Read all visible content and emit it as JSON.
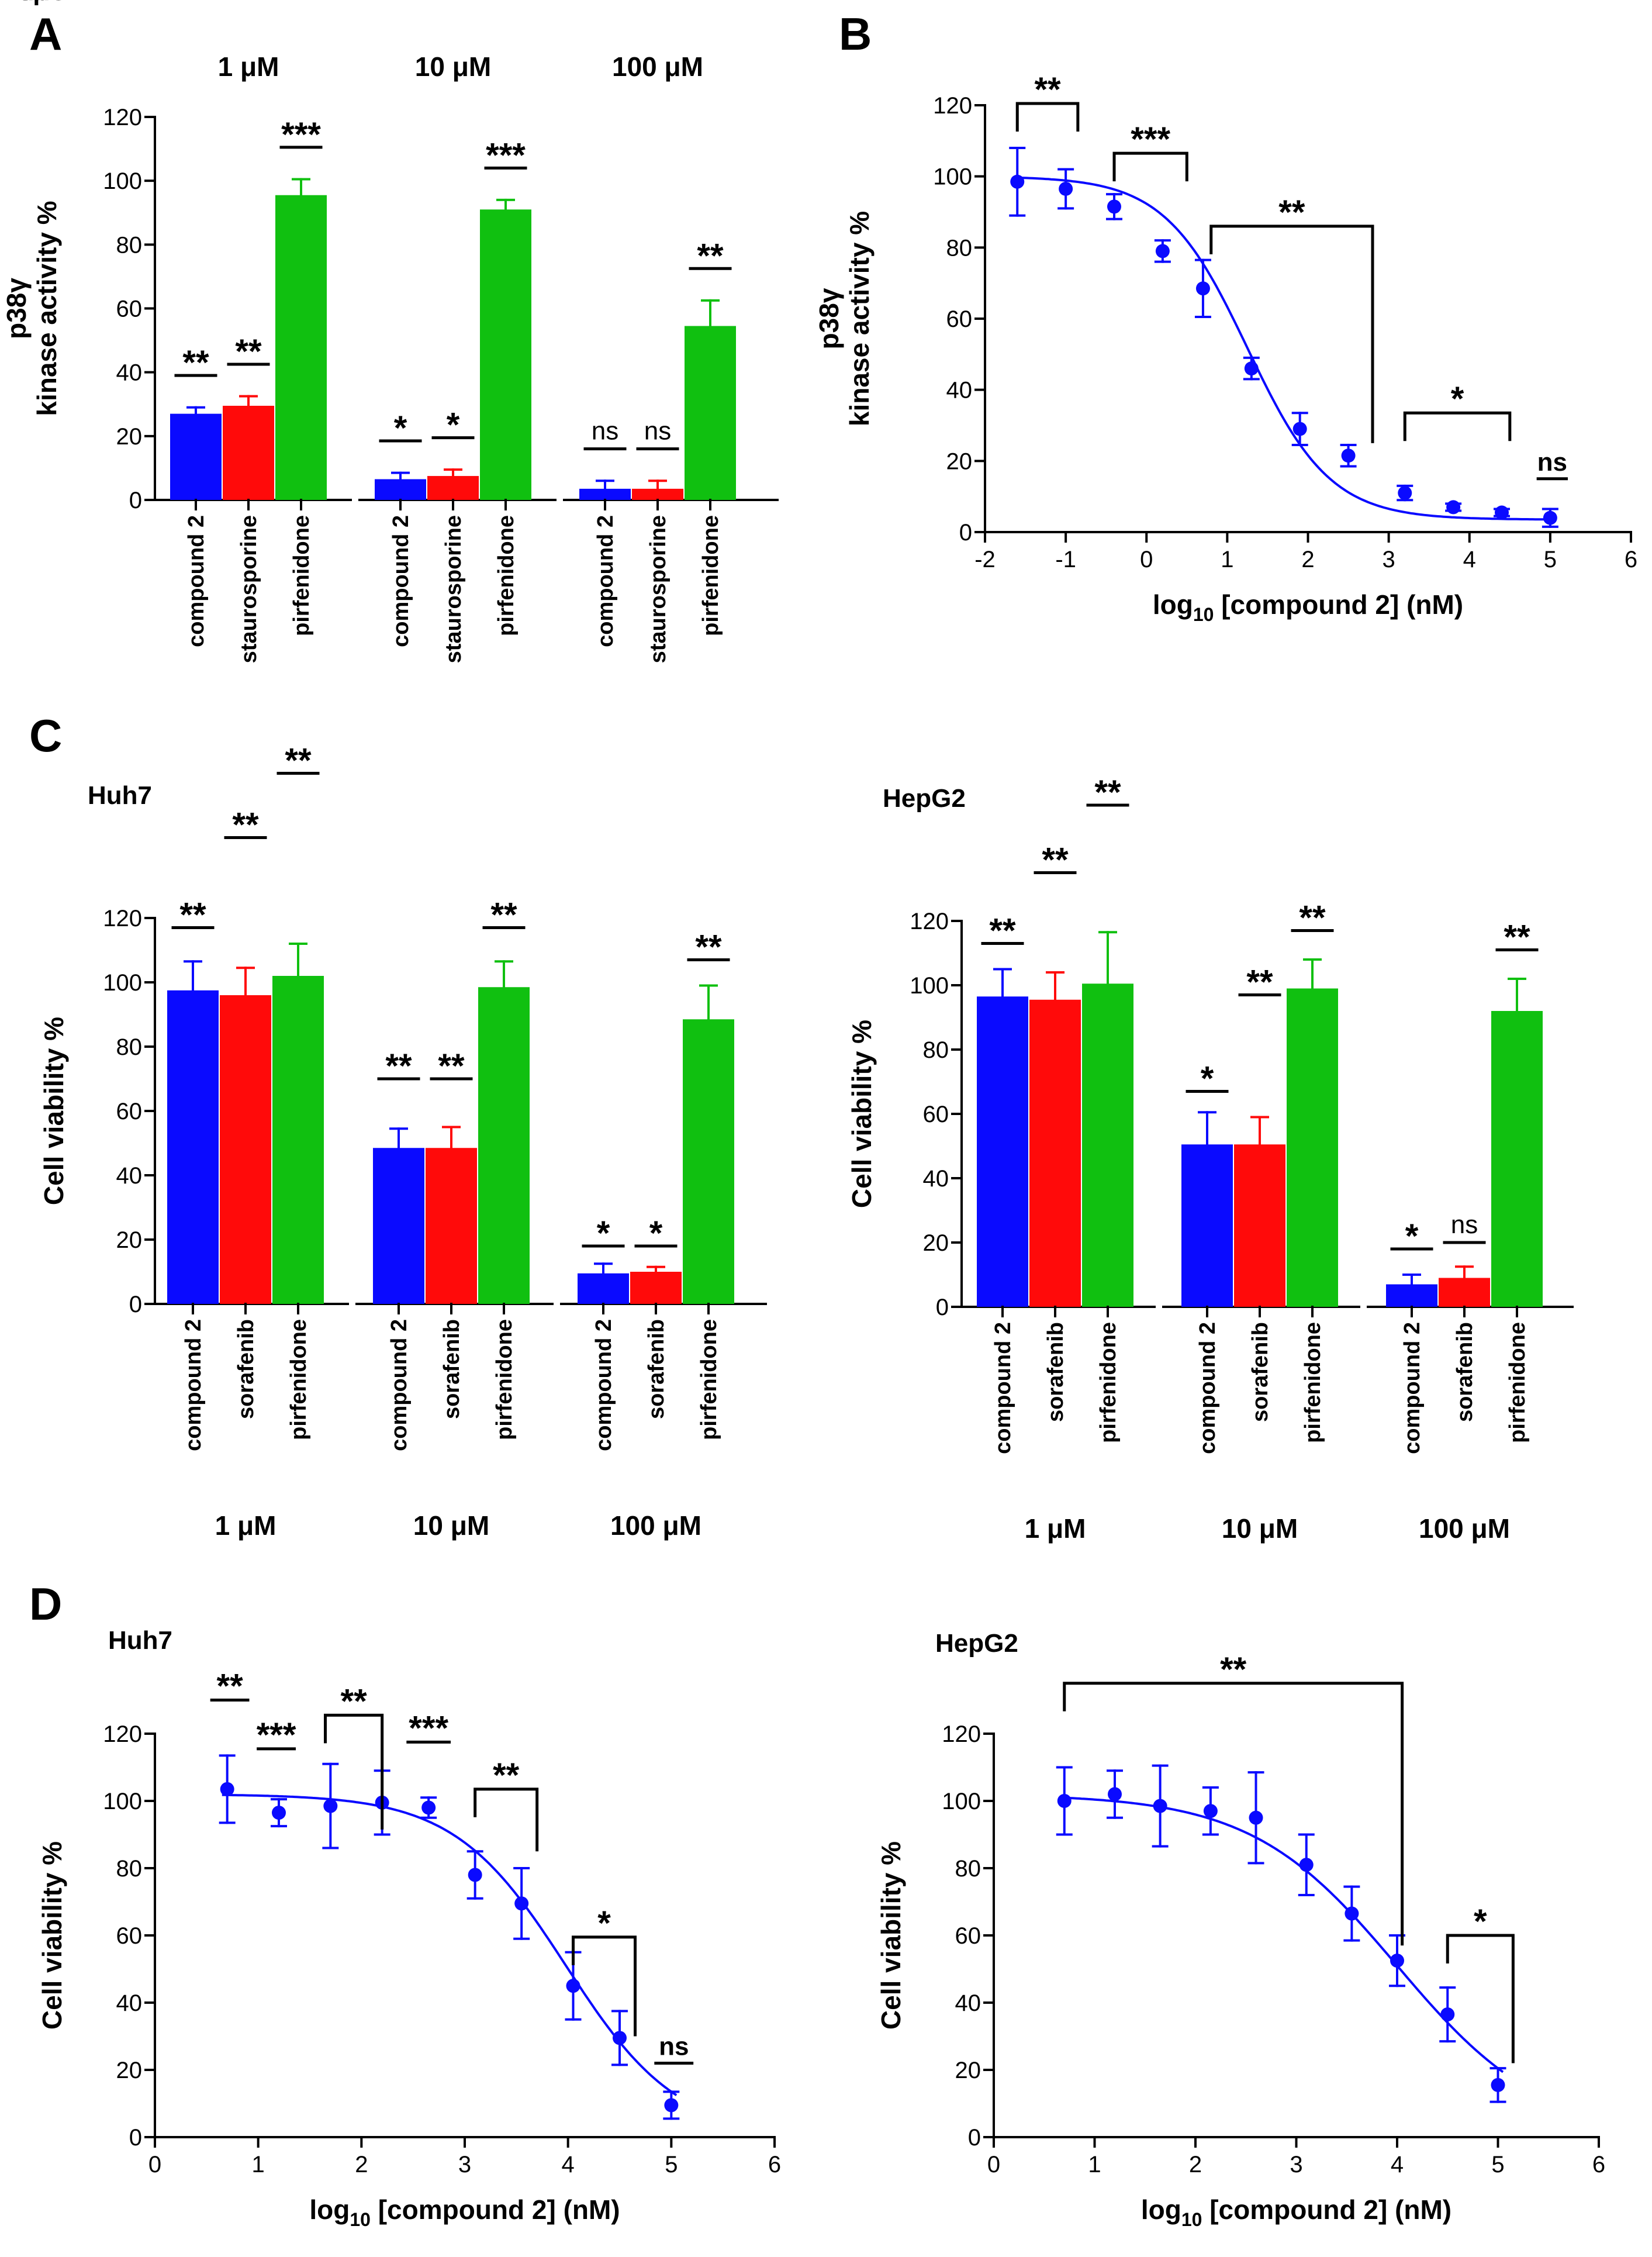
{
  "colors": {
    "compound": "#0a0aff",
    "control": "#ff0a0a",
    "pirfenidone": "#10c010",
    "axis": "#000000"
  },
  "chart_data": [
    {
      "panel": "A",
      "type": "bar",
      "ylabel": [
        "p38γ",
        "kinase activity %"
      ],
      "ylim": [
        0,
        120
      ],
      "yticks": [
        0,
        20,
        40,
        60,
        80,
        100,
        120
      ],
      "group_labels": [
        "1 μM",
        "10 μM",
        "100 μM"
      ],
      "group_labels_position": "top",
      "categories": [
        "compound 2",
        "staurosporine",
        "pirfenidone"
      ],
      "values": [
        [
          27,
          29.5,
          95.5
        ],
        [
          6.5,
          7.5,
          91
        ],
        [
          3.5,
          3.5,
          54.5
        ]
      ],
      "errors": [
        [
          2,
          3,
          5
        ],
        [
          2,
          2,
          3
        ],
        [
          2.5,
          2.5,
          8
        ]
      ],
      "significance": [
        [
          "**",
          "**",
          "***"
        ],
        [
          "*",
          "*",
          "***"
        ],
        [
          "ns",
          "ns",
          "**"
        ]
      ]
    },
    {
      "panel": "B",
      "type": "scatter",
      "ylabel": [
        "p38γ",
        "kinase activity %"
      ],
      "xlabel": [
        "log",
        "10",
        " [compound 2] (nM)"
      ],
      "xlim": [
        -2,
        6
      ],
      "ylim": [
        0,
        120
      ],
      "xticks": [
        -2,
        -1,
        0,
        1,
        2,
        3,
        4,
        5,
        6
      ],
      "yticks": [
        0,
        20,
        40,
        60,
        80,
        100,
        120
      ],
      "x": [
        -1.6,
        -1.0,
        -0.4,
        0.2,
        0.7,
        1.3,
        1.9,
        2.5,
        3.2,
        3.8,
        4.4,
        5.0
      ],
      "y": [
        98.5,
        96.5,
        91.5,
        79,
        68.5,
        46,
        29,
        21.5,
        11,
        7,
        5.5,
        4
      ],
      "err": [
        9.5,
        5.5,
        3.5,
        3,
        8,
        3,
        4.5,
        3,
        2,
        1,
        1,
        2.5
      ],
      "fit": {
        "top": 100,
        "bottom": 3.5,
        "logIC50": 1.25,
        "hill": 0.85
      },
      "brackets": [
        {
          "x1": -1.6,
          "x2": -0.85,
          "y": 120.5,
          "label": "**"
        },
        {
          "x1": -0.4,
          "x2": 0.5,
          "y": 106.5,
          "label": "***"
        },
        {
          "x1": 0.8,
          "x2": 2.8,
          "y": 86,
          "label": "**"
        },
        {
          "x1": 3.2,
          "x2": 4.5,
          "y": 33.5,
          "label": "*"
        },
        {
          "x1": 4.85,
          "x2": 5.2,
          "y": 15,
          "label": "ns",
          "line": "flat"
        }
      ]
    },
    {
      "panel": "C",
      "title": "Huh7",
      "type": "bar",
      "ylabel": [
        "Cell viability %"
      ],
      "ylim": [
        0,
        120
      ],
      "yticks": [
        0,
        20,
        40,
        60,
        80,
        100,
        120
      ],
      "group_labels": [
        "1 μM",
        "10 μM",
        "100 μM"
      ],
      "group_labels_position": "bottom",
      "categories": [
        "compound 2",
        "sorafenib",
        "pirfenidone"
      ],
      "values": [
        [
          97.5,
          96,
          102
        ],
        [
          48.5,
          48.5,
          98.5
        ],
        [
          9.5,
          10,
          88.5
        ]
      ],
      "errors": [
        [
          9,
          8.5,
          10
        ],
        [
          6,
          6.5,
          8
        ],
        [
          3,
          1.5,
          10.5
        ]
      ],
      "significance": [
        [
          "**",
          "**",
          "**"
        ],
        [
          "**",
          "**",
          "**"
        ],
        [
          "*",
          "*",
          "**"
        ]
      ],
      "sig_heights": [
        [
          117,
          145,
          165
        ],
        [
          70,
          70,
          117
        ],
        [
          18,
          18,
          107
        ]
      ]
    },
    {
      "panel": "C",
      "title": "HepG2",
      "type": "bar",
      "ylabel": [
        "Cell viability %"
      ],
      "ylim": [
        0,
        120
      ],
      "yticks": [
        0,
        20,
        40,
        60,
        80,
        100,
        120
      ],
      "group_labels": [
        "1 μM",
        "10 μM",
        "100 μM"
      ],
      "group_labels_position": "bottom",
      "categories": [
        "compound 2",
        "sorafenib",
        "pirfenidone"
      ],
      "values": [
        [
          96.5,
          95.5,
          100.5
        ],
        [
          50.5,
          50.5,
          99
        ],
        [
          7,
          9,
          92
        ]
      ],
      "errors": [
        [
          8.5,
          8.5,
          16
        ],
        [
          10,
          8.5,
          9
        ],
        [
          3,
          3.5,
          10
        ]
      ],
      "significance": [
        [
          "**",
          "**",
          "**"
        ],
        [
          "*",
          "**",
          "**"
        ],
        [
          "*",
          "ns",
          "**"
        ]
      ],
      "sig_heights": [
        [
          113,
          135,
          156
        ],
        [
          67,
          97,
          117
        ],
        [
          18,
          20,
          111
        ]
      ]
    },
    {
      "panel": "D",
      "title": "Huh7",
      "type": "scatter",
      "ylabel": [
        "Cell viability %"
      ],
      "xlabel": [
        "log",
        "10",
        " [compound 2] (nM)"
      ],
      "xlim": [
        0,
        6
      ],
      "ylim": [
        0,
        120
      ],
      "xticks": [
        0,
        1,
        2,
        3,
        4,
        5,
        6
      ],
      "yticks": [
        0,
        20,
        40,
        60,
        80,
        100,
        120
      ],
      "x": [
        0.7,
        1.2,
        1.7,
        2.2,
        2.65,
        3.1,
        3.55,
        4.05,
        4.5,
        5.0
      ],
      "y": [
        103.5,
        96.5,
        98.5,
        99.5,
        98,
        78,
        69.5,
        45,
        29.5,
        9.5
      ],
      "err": [
        10,
        4,
        12.5,
        9.5,
        3,
        7,
        10.5,
        10,
        8,
        4
      ],
      "fit": {
        "top": 102,
        "bottom": 0,
        "logIC50": 3.98,
        "hill": 0.8
      },
      "brackets": [
        {
          "x1": 0.55,
          "x2": 0.9,
          "y": 130,
          "label": "**",
          "line": "flat"
        },
        {
          "x1": 1.0,
          "x2": 1.35,
          "y": 115.5,
          "label": "***",
          "line": "flat"
        },
        {
          "x1": 1.65,
          "x2": 2.2,
          "y": 125.5,
          "label": "**",
          "line": "down"
        },
        {
          "x1": 2.45,
          "x2": 2.85,
          "y": 117.5,
          "label": "***",
          "line": "flat"
        },
        {
          "x1": 3.1,
          "x2": 3.7,
          "y": 103.5,
          "label": "**"
        },
        {
          "x1": 4.05,
          "x2": 4.65,
          "y": 59.5,
          "label": "*"
        },
        {
          "x1": 4.85,
          "x2": 5.2,
          "y": 22,
          "label": "ns",
          "line": "flat"
        }
      ]
    },
    {
      "panel": "D",
      "title": "HepG2",
      "type": "scatter",
      "ylabel": [
        "Cell viability %"
      ],
      "xlabel": [
        "log",
        "10",
        " [compound 2] (nM)"
      ],
      "xlim": [
        0,
        6
      ],
      "ylim": [
        0,
        120
      ],
      "xticks": [
        0,
        1,
        2,
        3,
        4,
        5,
        6
      ],
      "yticks": [
        0,
        20,
        40,
        60,
        80,
        100,
        120
      ],
      "x": [
        0.7,
        1.2,
        1.65,
        2.15,
        2.6,
        3.1,
        3.55,
        4.0,
        4.5,
        5.0
      ],
      "y": [
        100,
        102,
        98.5,
        97,
        95,
        81,
        66.5,
        52.5,
        36.5,
        15.5
      ],
      "err": [
        10,
        7,
        12,
        7,
        13.5,
        9,
        8,
        7.5,
        8,
        5
      ],
      "fit": {
        "top": 102,
        "bottom": 0,
        "logIC50": 4.0,
        "hill": 0.6
      },
      "brackets": [
        {
          "x1": 0.7,
          "x2": 4.05,
          "y": 135,
          "label": "**"
        },
        {
          "x1": 4.5,
          "x2": 5.15,
          "y": 60,
          "label": "*"
        }
      ]
    }
  ]
}
